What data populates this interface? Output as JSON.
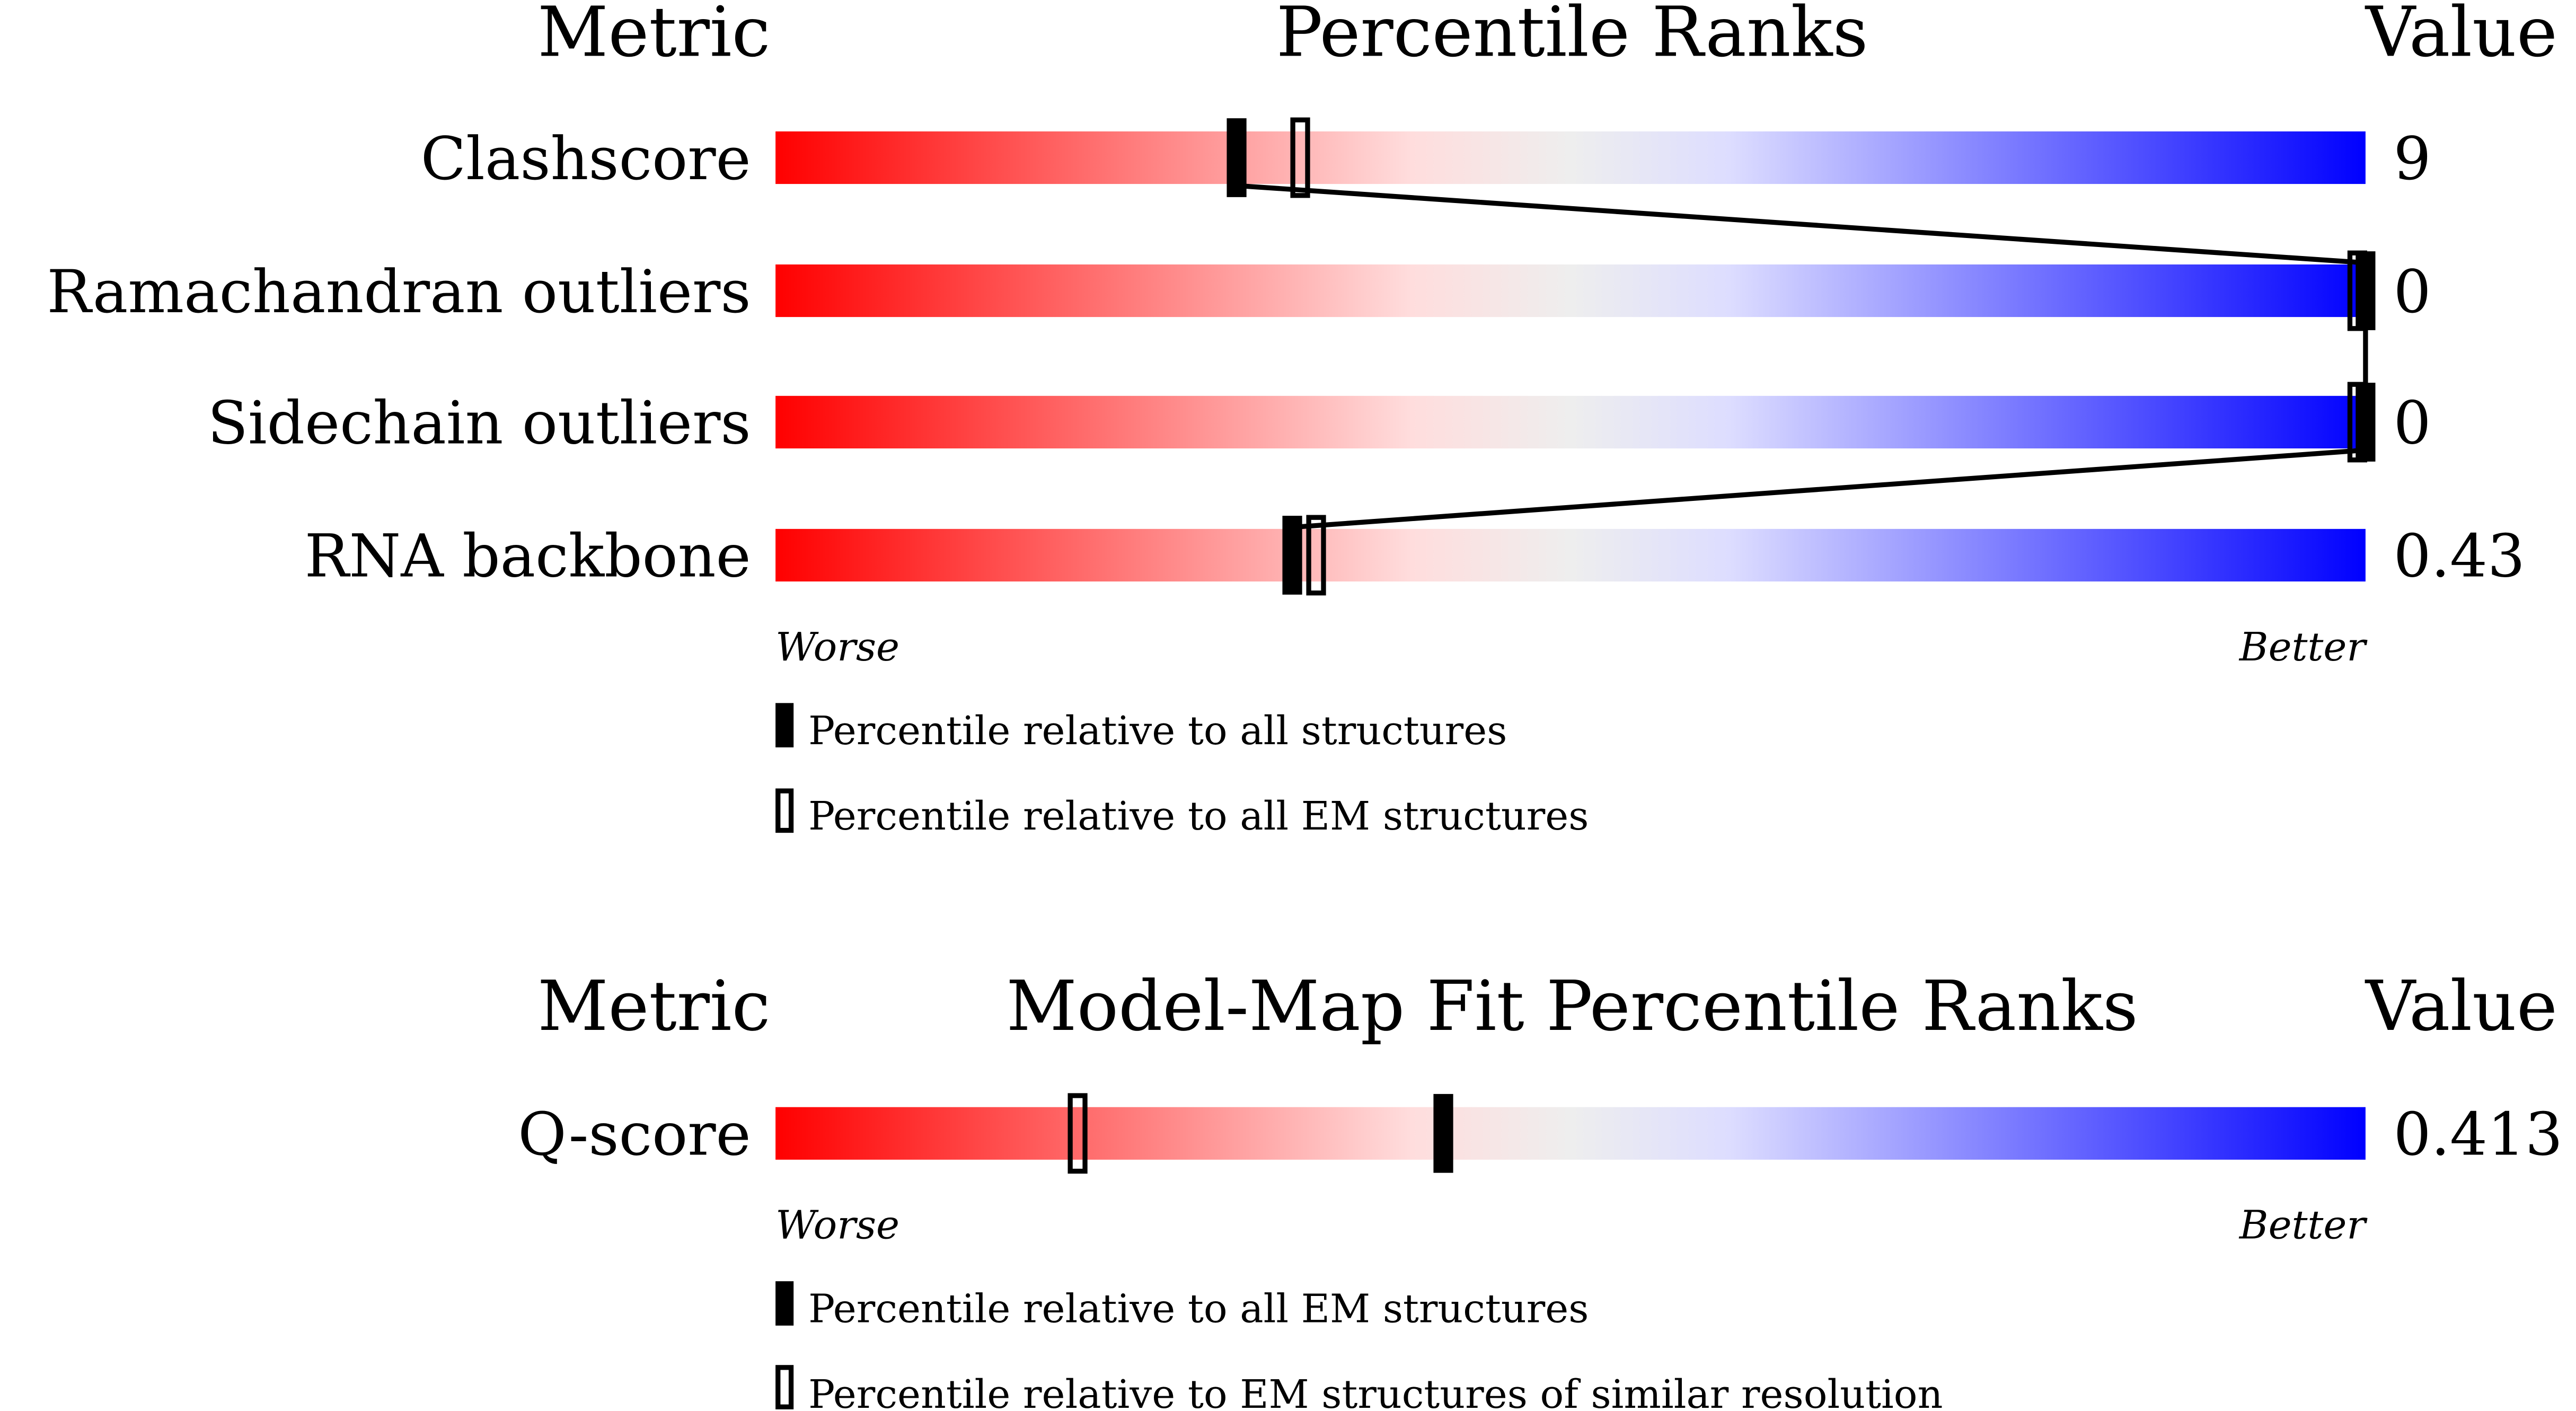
{
  "chart_data": [
    {
      "type": "bar",
      "headers": {
        "metric": "Metric",
        "title": "Percentile Ranks",
        "value": "Value"
      },
      "axis": {
        "left": "Worse",
        "right": "Better",
        "range": [
          0,
          100
        ]
      },
      "rows": [
        {
          "metric": "Clashscore",
          "value": "9",
          "percentile_all": 29,
          "percentile_em": 33
        },
        {
          "metric": "Ramachandran outliers",
          "value": "0",
          "percentile_all": 100,
          "percentile_em": 100
        },
        {
          "metric": "Sidechain outliers",
          "value": "0",
          "percentile_all": 100,
          "percentile_em": 100
        },
        {
          "metric": "RNA backbone",
          "value": "0.43",
          "percentile_all": 32.5,
          "percentile_em": 34
        }
      ],
      "legend": {
        "filled": "Percentile relative to all structures",
        "open": "Percentile relative to all EM structures"
      },
      "gradient_colors": [
        "#ff0000",
        "#ffdddd",
        "#eeeeee",
        "#ddddff",
        "#0000ff"
      ]
    },
    {
      "type": "bar",
      "headers": {
        "metric": "Metric",
        "title": "Model-Map Fit Percentile Ranks",
        "value": "Value"
      },
      "axis": {
        "left": "Worse",
        "right": "Better",
        "range": [
          0,
          100
        ]
      },
      "rows": [
        {
          "metric": "Q-score",
          "value": "0.413",
          "percentile_all": 42,
          "percentile_em": 19
        }
      ],
      "legend": {
        "filled": "Percentile relative to all EM structures",
        "open": "Percentile relative to EM structures of similar resolution"
      },
      "gradient_colors": [
        "#ff0000",
        "#ffdddd",
        "#eeeeee",
        "#ddddff",
        "#0000ff"
      ]
    }
  ]
}
